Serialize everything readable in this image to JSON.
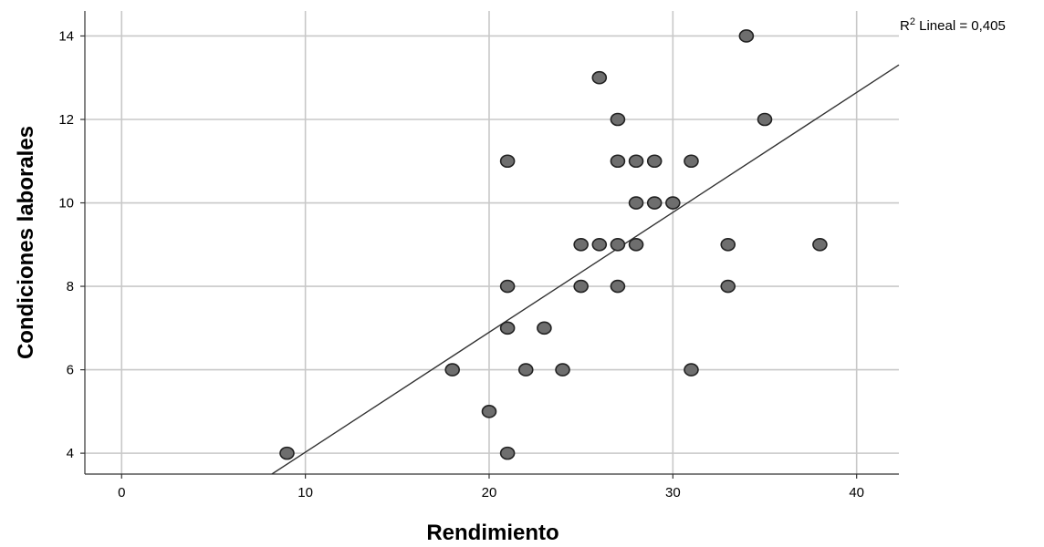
{
  "chart_data": {
    "type": "scatter",
    "title": "",
    "xlabel": "Rendimiento",
    "ylabel": "Condiciones laborales",
    "xlim": [
      -2,
      42.3
    ],
    "ylim": [
      3.5,
      14.6
    ],
    "xticks": [
      0,
      10,
      20,
      30,
      40
    ],
    "yticks": [
      4,
      6,
      8,
      10,
      12,
      14
    ],
    "grid": true,
    "points": [
      {
        "x": 9,
        "y": 4
      },
      {
        "x": 18,
        "y": 6
      },
      {
        "x": 20,
        "y": 5
      },
      {
        "x": 21,
        "y": 4
      },
      {
        "x": 21,
        "y": 7
      },
      {
        "x": 21,
        "y": 8
      },
      {
        "x": 21,
        "y": 11
      },
      {
        "x": 22,
        "y": 6
      },
      {
        "x": 23,
        "y": 7
      },
      {
        "x": 24,
        "y": 6
      },
      {
        "x": 25,
        "y": 8
      },
      {
        "x": 25,
        "y": 9
      },
      {
        "x": 26,
        "y": 9
      },
      {
        "x": 26,
        "y": 13
      },
      {
        "x": 27,
        "y": 8
      },
      {
        "x": 27,
        "y": 9
      },
      {
        "x": 27,
        "y": 11
      },
      {
        "x": 27,
        "y": 12
      },
      {
        "x": 28,
        "y": 9
      },
      {
        "x": 28,
        "y": 10
      },
      {
        "x": 28,
        "y": 11
      },
      {
        "x": 29,
        "y": 10
      },
      {
        "x": 29,
        "y": 11
      },
      {
        "x": 30,
        "y": 10
      },
      {
        "x": 31,
        "y": 6
      },
      {
        "x": 31,
        "y": 11
      },
      {
        "x": 33,
        "y": 8
      },
      {
        "x": 33,
        "y": 9
      },
      {
        "x": 34,
        "y": 14
      },
      {
        "x": 35,
        "y": 12
      },
      {
        "x": 38,
        "y": 9
      }
    ],
    "fit_line": {
      "type": "linear",
      "slope": 0.2874,
      "intercept": 1.15,
      "r2_label_prefix": "R",
      "r2_label_sup": "2",
      "r2_label_suffix": " Lineal = 0,405"
    }
  }
}
